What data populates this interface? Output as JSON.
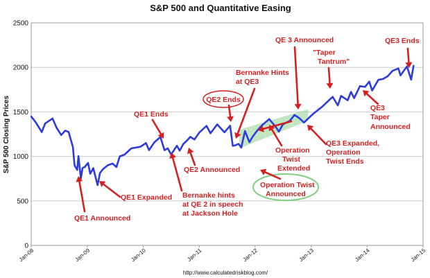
{
  "chart_data": {
    "type": "line",
    "title": "S&P 500 and Quantitative Easing",
    "xlabel": "",
    "ylabel": "S&P 500 Closing Prices",
    "source": "http://www.calculatedriskblog.com/",
    "ylim": [
      0,
      2500
    ],
    "yticks": [
      "0",
      "500",
      "1000",
      "1500",
      "2000",
      "2500"
    ],
    "xlim": [
      "2008-01-01",
      "2015-01-01"
    ],
    "xticks": [
      "Jan-08",
      "Jan-09",
      "Jan-10",
      "Jan-11",
      "Jan-12",
      "Jan-13",
      "Jan-14",
      "Jan-15"
    ],
    "grid": true,
    "line_color": "#2b3bdc",
    "annotation_color": "#d61f1f",
    "band_color": "#8fd08f",
    "series": [
      {
        "x": [
          "2008-01-02",
          "2008-02-01",
          "2008-03-10",
          "2008-04-01",
          "2008-05-19",
          "2008-06-15",
          "2008-07-15",
          "2008-08-10",
          "2008-09-01",
          "2008-09-29",
          "2008-10-10",
          "2008-10-27",
          "2008-11-04",
          "2008-11-20",
          "2008-12-01",
          "2008-12-15",
          "2009-01-06",
          "2009-01-20",
          "2009-02-09",
          "2009-03-09",
          "2009-03-25",
          "2009-04-15",
          "2009-05-15",
          "2009-06-15",
          "2009-07-10",
          "2009-08-01",
          "2009-09-01",
          "2009-10-15",
          "2009-11-15",
          "2009-12-15",
          "2010-01-19",
          "2010-02-08",
          "2010-03-15",
          "2010-04-23",
          "2010-05-20",
          "2010-06-10",
          "2010-07-02",
          "2010-08-09",
          "2010-08-27",
          "2010-09-20",
          "2010-10-15",
          "2010-11-04",
          "2010-12-01",
          "2011-01-03",
          "2011-02-18",
          "2011-03-16",
          "2011-04-29",
          "2011-06-15",
          "2011-07-22",
          "2011-08-08",
          "2011-08-22",
          "2011-09-15",
          "2011-10-03",
          "2011-10-27",
          "2011-11-25",
          "2011-12-15",
          "2012-01-15",
          "2012-02-15",
          "2012-04-02",
          "2012-05-15",
          "2012-06-04",
          "2012-07-01",
          "2012-08-15",
          "2012-09-14",
          "2012-10-15",
          "2012-11-15",
          "2012-12-15",
          "2013-01-15",
          "2013-03-15",
          "2013-05-21",
          "2013-06-24",
          "2013-07-15",
          "2013-08-27",
          "2013-09-18",
          "2013-10-08",
          "2013-11-15",
          "2013-12-18",
          "2014-01-15",
          "2014-02-03",
          "2014-03-15",
          "2014-04-15",
          "2014-05-15",
          "2014-06-15",
          "2014-07-24",
          "2014-08-07",
          "2014-09-18",
          "2014-10-15",
          "2014-10-31"
        ],
        "y": [
          1447,
          1380,
          1273,
          1370,
          1426,
          1320,
          1240,
          1290,
          1275,
          1106,
          900,
          848,
          1005,
          752,
          870,
          880,
          927,
          805,
          868,
          677,
          815,
          860,
          900,
          920,
          880,
          1000,
          1020,
          1090,
          1100,
          1110,
          1150,
          1070,
          1160,
          1217,
          1070,
          1090,
          1022,
          1120,
          1064,
          1140,
          1180,
          1220,
          1190,
          1270,
          1343,
          1260,
          1360,
          1270,
          1345,
          1119,
          1123,
          1140,
          1099,
          1285,
          1160,
          1220,
          1290,
          1350,
          1419,
          1330,
          1278,
          1360,
          1400,
          1465,
          1430,
          1380,
          1430,
          1480,
          1560,
          1669,
          1573,
          1680,
          1630,
          1725,
          1655,
          1790,
          1780,
          1840,
          1740,
          1860,
          1870,
          1900,
          1960,
          1988,
          1910,
          2011,
          1862,
          2018
        ]
      }
    ],
    "annotations": [
      {
        "text": "QE1 Announced"
      },
      {
        "text": "QE1 Expanded"
      },
      {
        "text": "QE1 Ends"
      },
      {
        "text": "Bernanke hints"
      },
      {
        "text": "at QE 2 in speech"
      },
      {
        "text": "at Jackson Hole"
      },
      {
        "text": "QE2 Announced"
      },
      {
        "text": "QE2 Ends"
      },
      {
        "text": "Bernanke Hints"
      },
      {
        "text": "at QE3"
      },
      {
        "text": "QE 3 Announced"
      },
      {
        "text": "Operation"
      },
      {
        "text": "Twist"
      },
      {
        "text": "Extended"
      },
      {
        "text": "Operation Twist"
      },
      {
        "text": "Announced"
      },
      {
        "text": "QE3 Expanded,"
      },
      {
        "text": "Operation"
      },
      {
        "text": "Twist Ends"
      },
      {
        "text": "\"Taper"
      },
      {
        "text": "Tantrum\""
      },
      {
        "text": "QE3"
      },
      {
        "text": "Taper"
      },
      {
        "text": "Announced"
      },
      {
        "text": "QE3 Ends"
      }
    ]
  }
}
